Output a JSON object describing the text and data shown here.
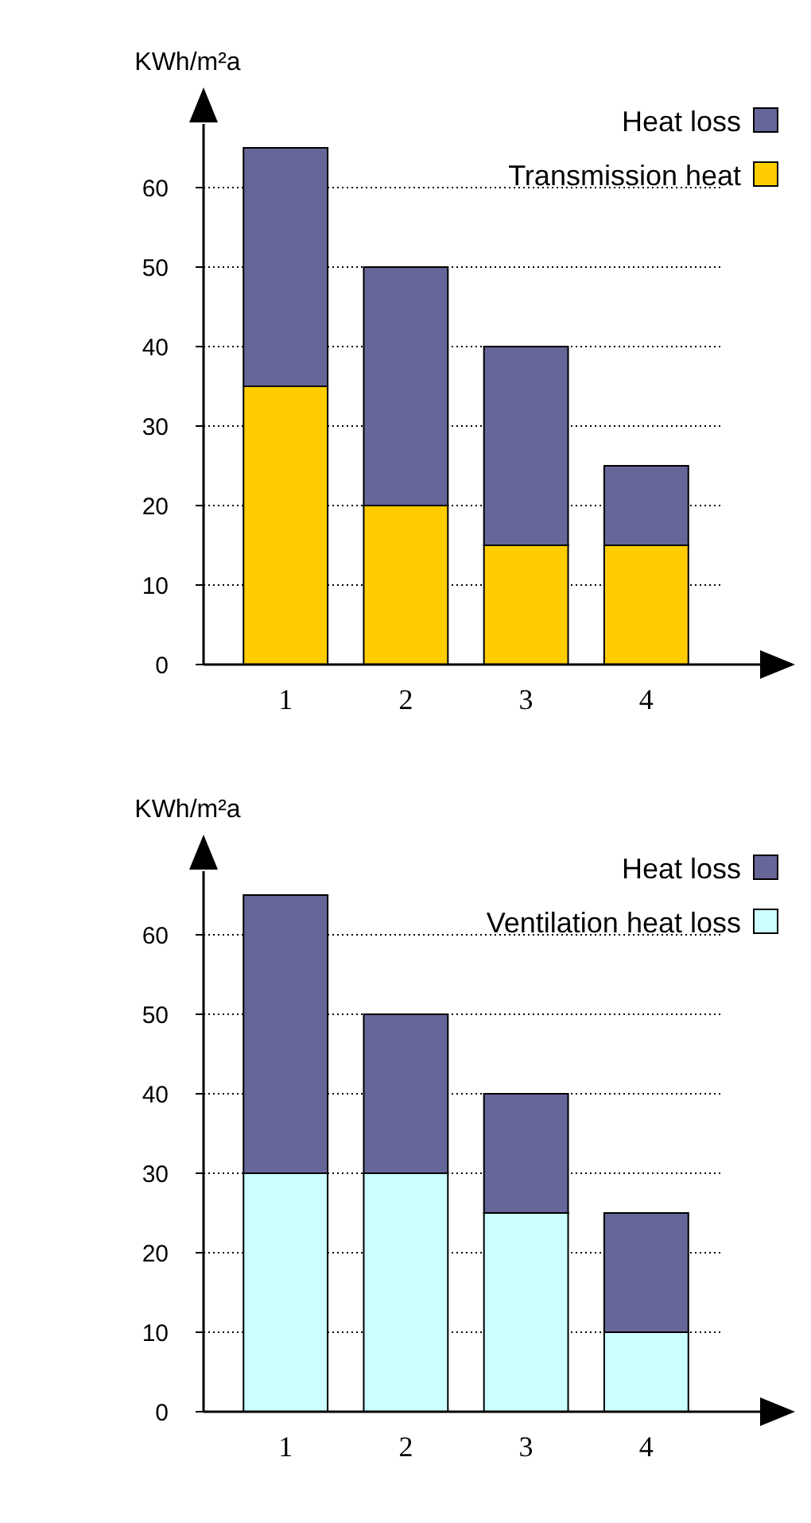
{
  "chart_data": [
    {
      "type": "bar",
      "stacked": true,
      "ylabel": "KWh/m²a",
      "categories": [
        "1",
        "2",
        "3",
        "4"
      ],
      "series": [
        {
          "name": "Transmission heat",
          "color": "#ffcc00",
          "values": [
            35,
            20,
            15,
            15
          ]
        },
        {
          "name": "Heat loss",
          "color": "#666699",
          "values": [
            30,
            30,
            25,
            10
          ]
        }
      ],
      "ylim": [
        0,
        68
      ],
      "yticks": [
        0,
        10,
        20,
        30,
        40,
        50,
        60
      ],
      "grid": "y",
      "legend": "top right"
    },
    {
      "type": "bar",
      "stacked": true,
      "ylabel": "KWh/m²a",
      "categories": [
        "1",
        "2",
        "3",
        "4"
      ],
      "series": [
        {
          "name": "Ventilation heat loss",
          "color": "#ccffff",
          "values": [
            30,
            30,
            25,
            10
          ]
        },
        {
          "name": "Heat loss",
          "color": "#666699",
          "values": [
            35,
            20,
            15,
            15
          ]
        }
      ],
      "ylim": [
        0,
        68
      ],
      "yticks": [
        0,
        10,
        20,
        30,
        40,
        50,
        60
      ],
      "grid": "y",
      "legend": "top right"
    }
  ]
}
